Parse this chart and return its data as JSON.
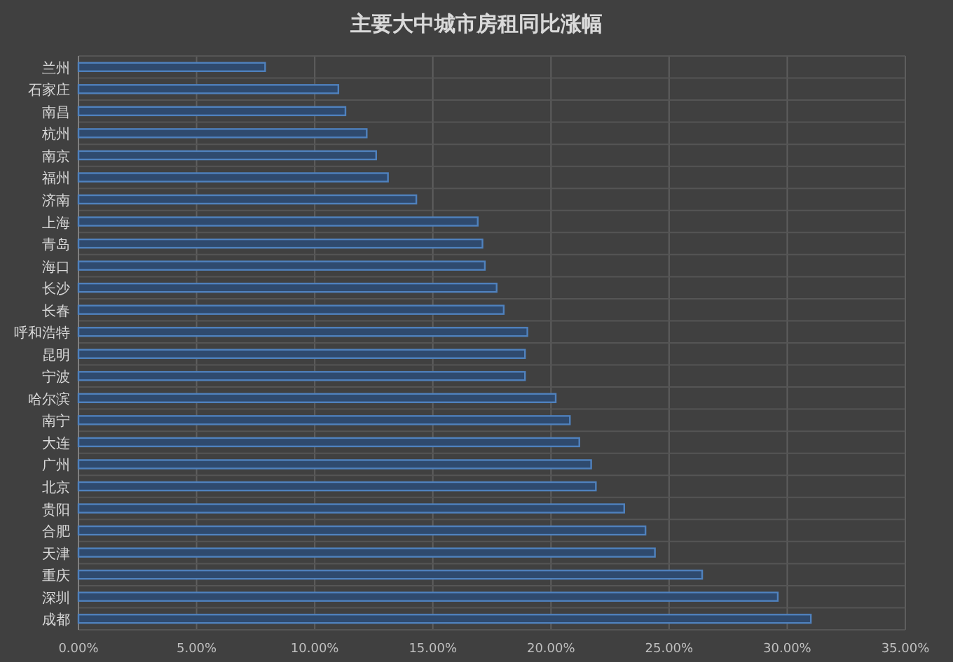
{
  "chart_data": {
    "type": "bar",
    "orientation": "horizontal",
    "title": "主要大中城市房租同比涨幅",
    "categories": [
      "兰州",
      "石家庄",
      "南昌",
      "杭州",
      "南京",
      "福州",
      "济南",
      "上海",
      "青岛",
      "海口",
      "长沙",
      "长春",
      "呼和浩特",
      "昆明",
      "宁波",
      "哈尔滨",
      "南宁",
      "大连",
      "广州",
      "北京",
      "贵阳",
      "合肥",
      "天津",
      "重庆",
      "深圳",
      "成都"
    ],
    "values": [
      7.9,
      11.0,
      11.3,
      12.2,
      12.6,
      13.1,
      14.3,
      16.9,
      17.1,
      17.2,
      17.7,
      18.0,
      19.0,
      18.9,
      18.9,
      20.2,
      20.8,
      21.2,
      21.7,
      21.9,
      23.1,
      24.0,
      24.4,
      26.4,
      29.6,
      31.0
    ],
    "color": "#4f81bd",
    "xlim": [
      0,
      35
    ],
    "xticks": [
      {
        "value": 0,
        "label": "0.00%"
      },
      {
        "value": 5,
        "label": "5.00%"
      },
      {
        "value": 10,
        "label": "10.00%"
      },
      {
        "value": 15,
        "label": "15.00%"
      },
      {
        "value": 20,
        "label": "20.00%"
      },
      {
        "value": 25,
        "label": "25.00%"
      },
      {
        "value": 30,
        "label": "30.00%"
      },
      {
        "value": 35,
        "label": "35.00%"
      }
    ],
    "grid": true
  }
}
